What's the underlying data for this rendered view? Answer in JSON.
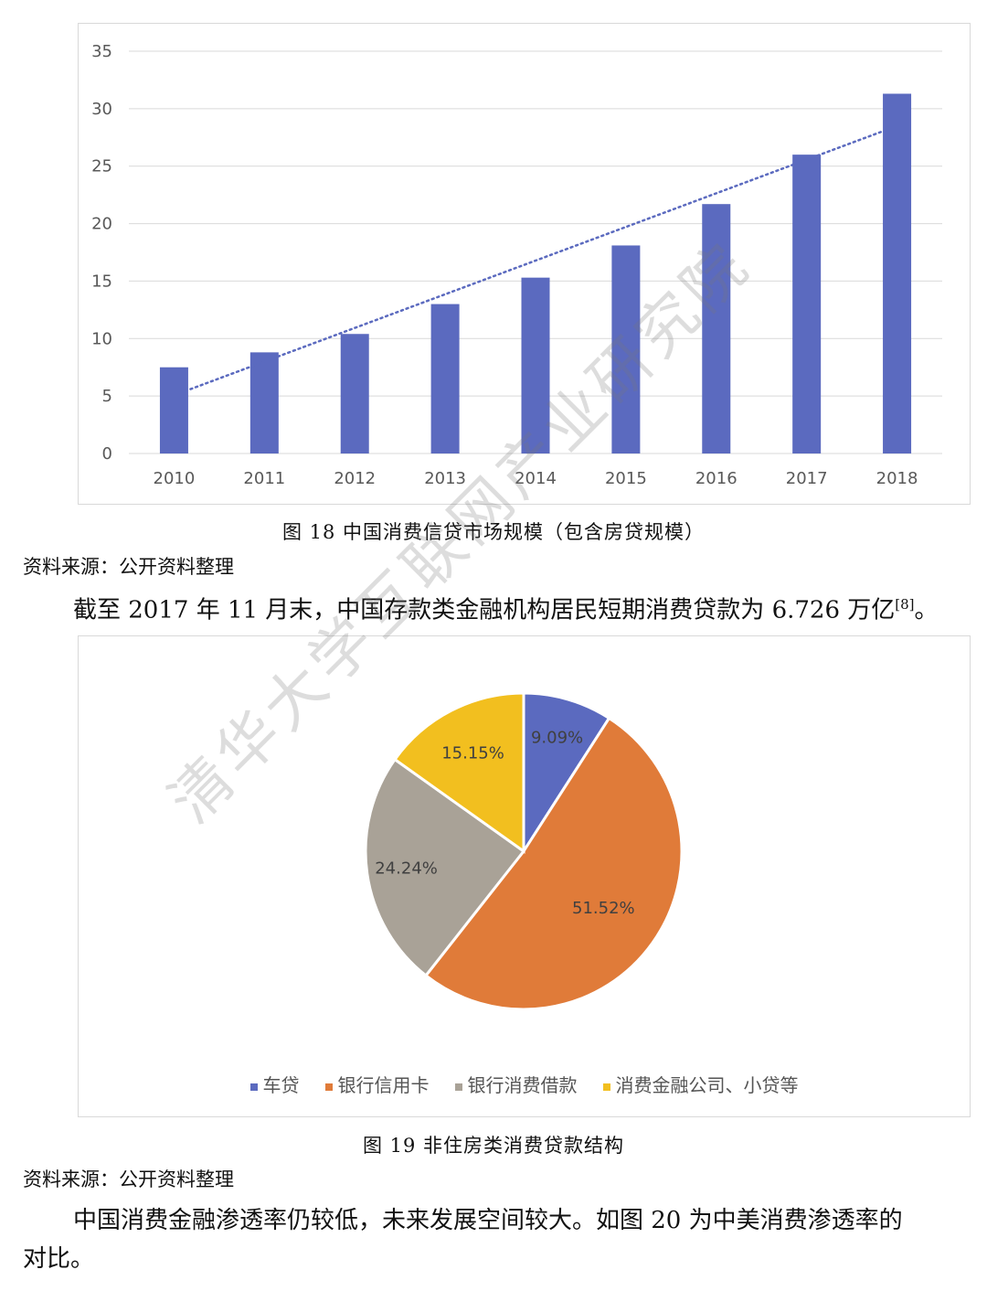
{
  "chart_data": [
    {
      "type": "bar",
      "categories": [
        "2010",
        "2011",
        "2012",
        "2013",
        "2014",
        "2015",
        "2016",
        "2017",
        "2018"
      ],
      "values": [
        7.5,
        8.8,
        10.4,
        13.0,
        15.3,
        18.1,
        21.7,
        26.0,
        31.3
      ],
      "ylim": [
        0,
        35
      ],
      "yticks": [
        0,
        5,
        10,
        15,
        20,
        25,
        30,
        35
      ],
      "trendline": {
        "type": "linear",
        "from": [
          2010,
          5.6
        ],
        "to": [
          2018,
          28.2
        ],
        "style": "dotted"
      },
      "grid": true,
      "bar_color": "#5b6abf"
    },
    {
      "type": "pie",
      "labels": [
        "车贷",
        "银行信用卡",
        "银行消费借款",
        "消费金融公司、小贷等"
      ],
      "values": [
        9.09,
        51.52,
        24.24,
        15.15
      ],
      "value_labels": [
        "9.09%",
        "51.52%",
        "24.24%",
        "15.15%"
      ],
      "colors": [
        "#5b6abf",
        "#e07b39",
        "#a9a297",
        "#f2bf1f"
      ],
      "legend": "bottom"
    }
  ],
  "captions": {
    "fig18": "图  18  中国消费信贷市场规模（包含房贷规模）",
    "fig19": "图  19  非住房类消费贷款结构"
  },
  "sources": {
    "s1": "资料来源：公开资料整理",
    "s2": "资料来源：公开资料整理"
  },
  "paragraphs": {
    "p1_main": "截至 2017 年 11 月末，中国存款类金融机构居民短期消费贷款为 6.726 万亿",
    "p1_ref": "[8]",
    "p1_end": "。",
    "p2_line1": "中国消费金融渗透率仍较低，未来发展空间较大。如图  20 为中美消费渗透率的",
    "p2_line2": "对比。"
  },
  "watermark": "清华大学互联网产业研究院"
}
